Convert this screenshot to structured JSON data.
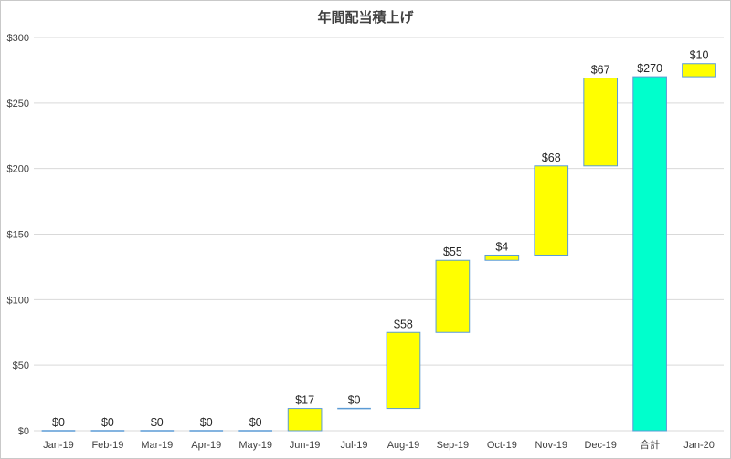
{
  "chart_data": {
    "type": "bar",
    "subtype": "waterfall",
    "title": "年間配当積上げ",
    "xlabel": "",
    "ylabel": "",
    "ylim": [
      0,
      300
    ],
    "yticks": [
      "$0",
      "$50",
      "$100",
      "$150",
      "$200",
      "$250",
      "$300"
    ],
    "ytick_values": [
      0,
      50,
      100,
      150,
      200,
      250,
      300
    ],
    "grid": true,
    "legend": "none",
    "categories": [
      "Jan-19",
      "Feb-19",
      "Mar-19",
      "Apr-19",
      "May-19",
      "Jun-19",
      "Jul-19",
      "Aug-19",
      "Sep-19",
      "Oct-19",
      "Nov-19",
      "Dec-19",
      "合計",
      "Jan-20"
    ],
    "values": [
      0,
      0,
      0,
      0,
      0,
      17,
      0,
      58,
      55,
      4,
      68,
      67,
      270,
      10
    ],
    "labels": [
      "$0",
      "$0",
      "$0",
      "$0",
      "$0",
      "$17",
      "$0",
      "$58",
      "$55",
      "$4",
      "$68",
      "$67",
      "$270",
      "$10"
    ],
    "is_total": [
      false,
      false,
      false,
      false,
      false,
      false,
      false,
      false,
      false,
      false,
      false,
      false,
      true,
      false
    ],
    "colors": {
      "increase": "#ffff00",
      "total": "#00ffcc",
      "bar_border": "#5b9bd5",
      "grid": "#d9d9d9"
    }
  }
}
